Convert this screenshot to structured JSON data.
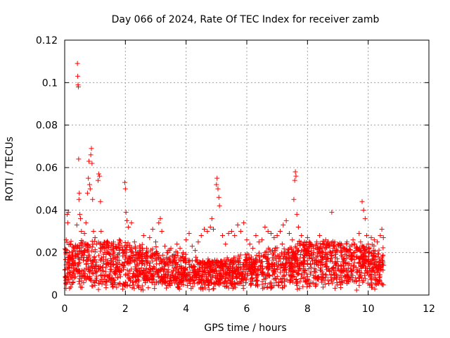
{
  "chart_data": {
    "type": "scatter",
    "title": "Day 066 of 2024, Rate Of TEC Index for receiver zamb",
    "xlabel": "GPS time / hours",
    "ylabel": "ROTI / TECUs",
    "xlim": [
      0,
      12
    ],
    "ylim": [
      0,
      0.12
    ],
    "x_ticks": [
      0,
      2,
      4,
      6,
      8,
      10,
      12
    ],
    "x_tick_labels": [
      "0",
      "2",
      "4",
      "6",
      "8",
      "10",
      "12"
    ],
    "y_ticks": [
      0,
      0.02,
      0.04,
      0.06,
      0.08,
      0.1,
      0.12
    ],
    "y_tick_labels": [
      "0",
      "0.02",
      "0.04",
      "0.06",
      "0.08",
      "0.1",
      "0.12"
    ],
    "grid": true,
    "marker": "+",
    "color": "#ff0000",
    "series": [
      {
        "name": "ROTI",
        "points": [
          [
            0.02,
            0.012
          ],
          [
            0.05,
            0.026
          ],
          [
            0.08,
            0.038
          ],
          [
            0.1,
            0.034
          ],
          [
            0.12,
            0.039
          ],
          [
            0.15,
            0.02
          ],
          [
            0.2,
            0.024
          ],
          [
            0.25,
            0.015
          ],
          [
            0.3,
            0.021
          ],
          [
            0.35,
            0.018
          ],
          [
            0.4,
            0.033
          ],
          [
            0.42,
            0.109
          ],
          [
            0.43,
            0.103
          ],
          [
            0.44,
            0.099
          ],
          [
            0.45,
            0.098
          ],
          [
            0.46,
            0.064
          ],
          [
            0.47,
            0.045
          ],
          [
            0.48,
            0.048
          ],
          [
            0.5,
            0.038
          ],
          [
            0.52,
            0.036
          ],
          [
            0.55,
            0.03
          ],
          [
            0.6,
            0.025
          ],
          [
            0.65,
            0.029
          ],
          [
            0.7,
            0.034
          ],
          [
            0.75,
            0.048
          ],
          [
            0.78,
            0.055
          ],
          [
            0.8,
            0.063
          ],
          [
            0.82,
            0.052
          ],
          [
            0.84,
            0.05
          ],
          [
            0.86,
            0.066
          ],
          [
            0.88,
            0.069
          ],
          [
            0.9,
            0.062
          ],
          [
            0.92,
            0.045
          ],
          [
            0.95,
            0.03
          ],
          [
            1.0,
            0.027
          ],
          [
            1.05,
            0.024
          ],
          [
            1.1,
            0.054
          ],
          [
            1.12,
            0.057
          ],
          [
            1.15,
            0.056
          ],
          [
            1.18,
            0.044
          ],
          [
            1.2,
            0.03
          ],
          [
            1.3,
            0.022
          ],
          [
            1.4,
            0.02
          ],
          [
            1.5,
            0.019
          ],
          [
            1.6,
            0.024
          ],
          [
            1.7,
            0.022
          ],
          [
            1.8,
            0.026
          ],
          [
            1.9,
            0.021
          ],
          [
            1.98,
            0.053
          ],
          [
            2.0,
            0.05
          ],
          [
            2.02,
            0.039
          ],
          [
            2.05,
            0.035
          ],
          [
            2.1,
            0.032
          ],
          [
            2.2,
            0.034
          ],
          [
            2.3,
            0.025
          ],
          [
            2.4,
            0.02
          ],
          [
            2.5,
            0.018
          ],
          [
            2.6,
            0.028
          ],
          [
            2.7,
            0.022
          ],
          [
            2.8,
            0.027
          ],
          [
            2.9,
            0.031
          ],
          [
            3.0,
            0.025
          ],
          [
            3.1,
            0.034
          ],
          [
            3.15,
            0.036
          ],
          [
            3.2,
            0.03
          ],
          [
            3.3,
            0.023
          ],
          [
            3.4,
            0.02
          ],
          [
            3.5,
            0.022
          ],
          [
            3.6,
            0.019
          ],
          [
            3.7,
            0.024
          ],
          [
            3.8,
            0.022
          ],
          [
            3.9,
            0.02
          ],
          [
            4.0,
            0.026
          ],
          [
            4.1,
            0.029
          ],
          [
            4.2,
            0.023
          ],
          [
            4.3,
            0.021
          ],
          [
            4.4,
            0.025
          ],
          [
            4.5,
            0.028
          ],
          [
            4.6,
            0.031
          ],
          [
            4.7,
            0.03
          ],
          [
            4.8,
            0.032
          ],
          [
            4.85,
            0.036
          ],
          [
            4.9,
            0.031
          ],
          [
            5.0,
            0.052
          ],
          [
            5.02,
            0.055
          ],
          [
            5.05,
            0.05
          ],
          [
            5.08,
            0.046
          ],
          [
            5.1,
            0.042
          ],
          [
            5.2,
            0.028
          ],
          [
            5.3,
            0.024
          ],
          [
            5.4,
            0.029
          ],
          [
            5.5,
            0.03
          ],
          [
            5.6,
            0.028
          ],
          [
            5.7,
            0.033
          ],
          [
            5.8,
            0.03
          ],
          [
            5.9,
            0.034
          ],
          [
            6.0,
            0.026
          ],
          [
            6.1,
            0.024
          ],
          [
            6.2,
            0.022
          ],
          [
            6.3,
            0.028
          ],
          [
            6.4,
            0.025
          ],
          [
            6.5,
            0.026
          ],
          [
            6.6,
            0.032
          ],
          [
            6.7,
            0.03
          ],
          [
            6.8,
            0.029
          ],
          [
            6.9,
            0.027
          ],
          [
            7.0,
            0.028
          ],
          [
            7.1,
            0.03
          ],
          [
            7.2,
            0.033
          ],
          [
            7.3,
            0.035
          ],
          [
            7.4,
            0.029
          ],
          [
            7.5,
            0.026
          ],
          [
            7.55,
            0.045
          ],
          [
            7.58,
            0.054
          ],
          [
            7.6,
            0.058
          ],
          [
            7.62,
            0.056
          ],
          [
            7.65,
            0.038
          ],
          [
            7.7,
            0.032
          ],
          [
            7.8,
            0.028
          ],
          [
            7.9,
            0.025
          ],
          [
            8.0,
            0.027
          ],
          [
            8.1,
            0.024
          ],
          [
            8.2,
            0.022
          ],
          [
            8.3,
            0.025
          ],
          [
            8.4,
            0.028
          ],
          [
            8.5,
            0.024
          ],
          [
            8.6,
            0.026
          ],
          [
            8.7,
            0.023
          ],
          [
            8.8,
            0.039
          ],
          [
            8.9,
            0.021
          ],
          [
            9.0,
            0.024
          ],
          [
            9.1,
            0.02
          ],
          [
            9.2,
            0.022
          ],
          [
            9.3,
            0.025
          ],
          [
            9.4,
            0.023
          ],
          [
            9.5,
            0.026
          ],
          [
            9.6,
            0.022
          ],
          [
            9.7,
            0.029
          ],
          [
            9.75,
            0.025
          ],
          [
            9.8,
            0.044
          ],
          [
            9.85,
            0.04
          ],
          [
            9.9,
            0.036
          ],
          [
            9.95,
            0.028
          ],
          [
            10.0,
            0.024
          ],
          [
            10.1,
            0.027
          ],
          [
            10.2,
            0.026
          ],
          [
            10.3,
            0.025
          ],
          [
            10.4,
            0.028
          ],
          [
            10.45,
            0.031
          ],
          [
            10.5,
            0.027
          ]
        ],
        "band": {
          "x_range": [
            0.0,
            10.5
          ],
          "y_floor": [
            0.002,
            0.006
          ],
          "y_ceiling": [
            0.016,
            0.026
          ],
          "density_per_hour": 220
        }
      }
    ]
  }
}
